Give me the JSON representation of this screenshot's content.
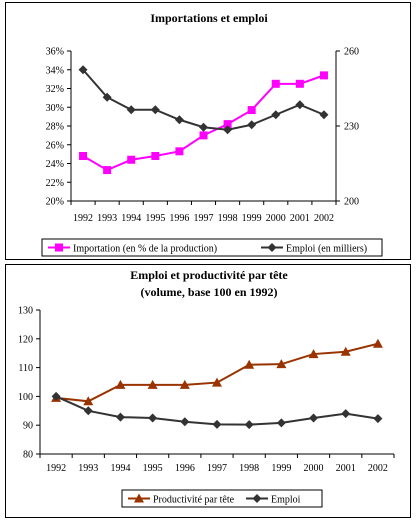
{
  "chart_data": [
    {
      "type": "line",
      "title": "Importations et emploi",
      "categories": [
        "1992",
        "1993",
        "1994",
        "1995",
        "1996",
        "1997",
        "1998",
        "1999",
        "2000",
        "2001",
        "2002"
      ],
      "y_left": {
        "ticks": [
          "20%",
          "22%",
          "24%",
          "26%",
          "28%",
          "30%",
          "32%",
          "34%",
          "36%"
        ],
        "ylim": [
          20,
          36
        ]
      },
      "y_right": {
        "ticks": [
          "200",
          "230",
          "260"
        ],
        "ylim": [
          200,
          260
        ]
      },
      "series": [
        {
          "name": "Importation (en % de la production)",
          "axis": "left",
          "color": "#ff00ff",
          "marker": "square",
          "values": [
            24.8,
            23.3,
            24.4,
            24.8,
            25.3,
            27.0,
            28.2,
            29.7,
            32.5,
            32.5,
            33.4
          ]
        },
        {
          "name": "Emploi (en milliers)",
          "axis": "right",
          "color": "#333333",
          "marker": "diamond",
          "values": [
            252.5,
            241.5,
            236.5,
            236.5,
            232.5,
            229.5,
            228.5,
            230.5,
            234.5,
            238.5,
            234.5
          ]
        }
      ],
      "legend": "bottom"
    },
    {
      "type": "line",
      "title": "Emploi et productivité par tête",
      "subtitle": "(volume, base 100 en 1992)",
      "categories": [
        "1992",
        "1993",
        "1994",
        "1995",
        "1996",
        "1997",
        "1998",
        "1999",
        "2000",
        "2001",
        "2002"
      ],
      "y": {
        "ticks": [
          "80",
          "90",
          "100",
          "110",
          "120",
          "130"
        ],
        "ylim": [
          80,
          130
        ]
      },
      "series": [
        {
          "name": "Productivité par tête",
          "color": "#993300",
          "marker": "triangle",
          "values": [
            99.5,
            98.3,
            104,
            104,
            104,
            104.8,
            111,
            111.2,
            114.7,
            115.5,
            118.3
          ]
        },
        {
          "name": "Emploi",
          "color": "#333333",
          "marker": "diamond",
          "values": [
            100,
            95,
            92.8,
            92.5,
            91.2,
            90.3,
            90.2,
            90.8,
            92.5,
            94,
            92.3
          ]
        }
      ],
      "legend": "bottom"
    }
  ]
}
